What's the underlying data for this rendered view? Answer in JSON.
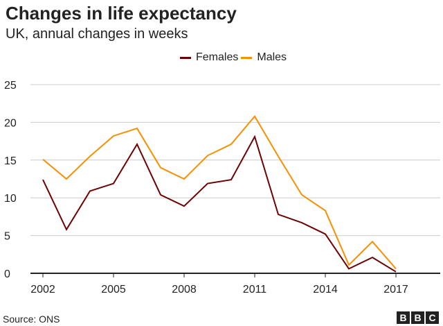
{
  "chart_data": {
    "type": "line",
    "title": "Changes in life expectancy",
    "subtitle": "UK, annual changes in weeks",
    "x": [
      2002,
      2003,
      2004,
      2005,
      2006,
      2007,
      2008,
      2009,
      2010,
      2011,
      2012,
      2013,
      2014,
      2015,
      2016,
      2017
    ],
    "xticks": [
      "2002",
      "2005",
      "2008",
      "2011",
      "2014",
      "2017"
    ],
    "yticks": [
      "0",
      "5",
      "10",
      "15",
      "20",
      "25"
    ],
    "ylim": [
      0,
      25
    ],
    "grid": true,
    "legend_placement": "top",
    "series": [
      {
        "name": "Females",
        "color": "#6e0000",
        "values": [
          12.4,
          5.8,
          10.9,
          11.9,
          17.1,
          10.4,
          8.9,
          11.9,
          12.4,
          18.1,
          7.8,
          6.7,
          5.2,
          0.6,
          2.1,
          0.2
        ]
      },
      {
        "name": "Males",
        "color": "#f78f00",
        "values": [
          15.1,
          12.5,
          15.5,
          18.2,
          19.2,
          14.0,
          12.5,
          15.6,
          17.1,
          20.8,
          15.5,
          10.4,
          8.3,
          1.1,
          4.2,
          0.6
        ]
      }
    ],
    "source": "Source: ONS"
  },
  "logo": [
    "B",
    "B",
    "C"
  ]
}
